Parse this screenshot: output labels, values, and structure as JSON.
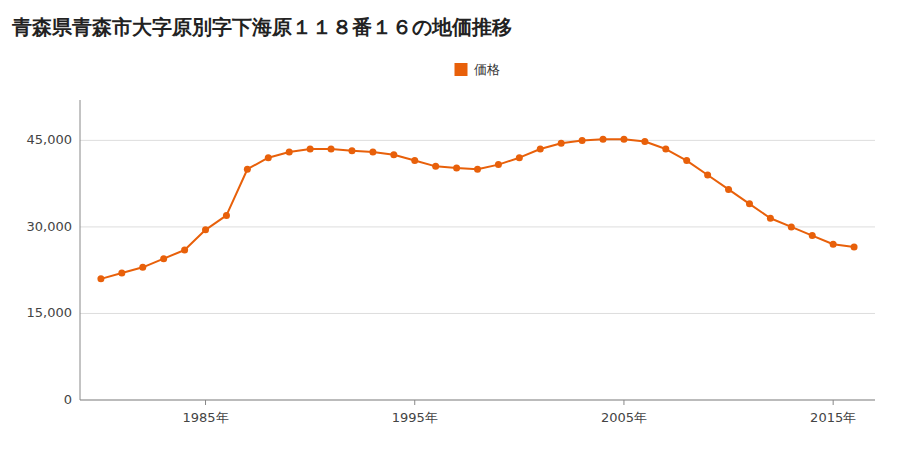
{
  "chart_data": {
    "type": "line",
    "title": "青森県青森市大字原別字下海原１１８番１６の地価推移",
    "x": [
      1980,
      1981,
      1982,
      1983,
      1984,
      1985,
      1986,
      1987,
      1988,
      1989,
      1990,
      1991,
      1992,
      1993,
      1994,
      1995,
      1996,
      1997,
      1998,
      1999,
      2000,
      2001,
      2002,
      2003,
      2004,
      2005,
      2006,
      2007,
      2008,
      2009,
      2010,
      2011,
      2012,
      2013,
      2014,
      2015,
      2016
    ],
    "series": [
      {
        "name": "価格",
        "color": "#E8600A",
        "marker": "circle",
        "values": [
          21000,
          22000,
          23000,
          24500,
          26000,
          29500,
          32000,
          40000,
          42000,
          43000,
          43500,
          43500,
          43200,
          43000,
          42500,
          41500,
          40500,
          40200,
          40000,
          40800,
          42000,
          43500,
          44500,
          45000,
          45200,
          45200,
          44800,
          43500,
          41500,
          39000,
          36500,
          34000,
          31500,
          30000,
          28500,
          27000,
          26500
        ]
      }
    ],
    "xlim": [
      1979,
      2017
    ],
    "xticks": [
      {
        "value": 1985,
        "label": "1985年"
      },
      {
        "value": 1995,
        "label": "1995年"
      },
      {
        "value": 2005,
        "label": "2005年"
      },
      {
        "value": 2015,
        "label": "2015年"
      }
    ],
    "ylim": [
      0,
      52000
    ],
    "yticks": [
      0,
      {
        "value": 15000,
        "label": "15,000"
      },
      {
        "value": 30000,
        "label": "30,000"
      },
      {
        "value": 45000,
        "label": "45,000"
      }
    ],
    "grid": true,
    "legend": "top"
  }
}
